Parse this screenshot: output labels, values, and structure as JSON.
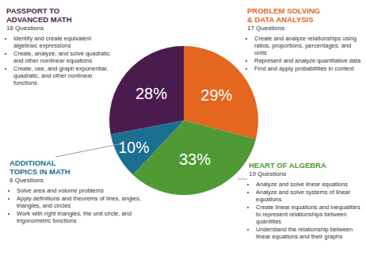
{
  "chart_data": {
    "type": "pie",
    "categories": [
      "PROBLEM SOLVING\n& DATA ANALYSIS",
      "HEART OF ALGEBRA",
      "ADDITIONAL\nTOPICS IN MATH",
      "PASSPORT TO\nADVANCED MATH"
    ],
    "values": [
      29,
      33,
      10,
      28
    ],
    "value_labels": [
      "29%",
      "33%",
      "10%",
      "28%"
    ],
    "colors": [
      "#e4661f",
      "#4f9a34",
      "#1b6f92",
      "#4a1c4d"
    ],
    "data_labels": true,
    "annotations": [
      {
        "subtitle": "17 Questions",
        "items": [
          "Create and analyze relationships using ratios, proportions, percentages, and units",
          "Represent and analyze quantitative data",
          "Find and apply probabilities in context"
        ]
      },
      {
        "subtitle": "19 Questions",
        "items": [
          "Analyze and solve linear equations",
          "Analyze and solve systems of linear equations",
          "Create linear equations and inequalities to represent relationships between quantities",
          "Understand the relationship between linear equations and their graphs"
        ]
      },
      {
        "subtitle": "6 Questions",
        "items": [
          "Solve area and volume problems",
          "Apply definitions and theorems of lines, angles, triangles, and circles",
          "Work with right triangles, the unit circle, and trigonometric functions"
        ]
      },
      {
        "subtitle": "16 Questions",
        "items": [
          "Identify and create equivalent algebraic expressions",
          "Create, analyze, and solve quadratic and other nonlinear equations",
          "Create, use, and graph exponential, quadratic, and other nonlinear functions"
        ]
      }
    ]
  }
}
